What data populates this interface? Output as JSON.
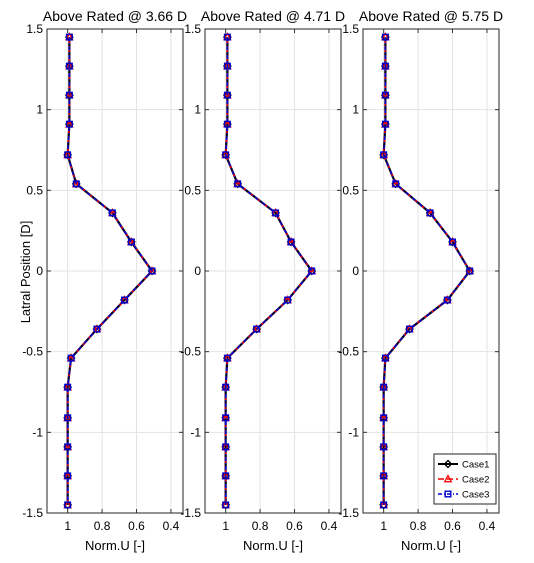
{
  "chart_data": {
    "type": "line",
    "ylabel": "Latral Position [D]",
    "xlabel": "Norm.U [-]",
    "ylim": [
      -1.5,
      1.5
    ],
    "xlim": [
      1.12,
      0.33
    ],
    "x_reversed": true,
    "grid": true,
    "yticks": [
      -1.5,
      -1,
      -0.5,
      0,
      0.5,
      1,
      1.5
    ],
    "ytick_labels": [
      "-1.5",
      "-1",
      "-0.5",
      "0",
      "0.5",
      "1",
      "1.5"
    ],
    "xticks": [
      1,
      0.8,
      0.6,
      0.4
    ],
    "xtick_labels": [
      "1",
      "0.8",
      "0.6",
      "0.4"
    ],
    "legend": {
      "placement": "bottom-right",
      "panel": 2,
      "entries": [
        "Case1",
        "Case2",
        "Case3"
      ]
    },
    "series_styles": [
      {
        "name": "Case1",
        "color": "#000000",
        "dash": "",
        "marker": "diamond"
      },
      {
        "name": "Case2",
        "color": "#ff0000",
        "dash": "6,3",
        "marker": "triangle"
      },
      {
        "name": "Case3",
        "color": "#0000cc",
        "dash": "4,2,1,2",
        "marker": "square"
      }
    ],
    "panels": [
      {
        "title": "Above Rated @ 3.66 D",
        "series": [
          {
            "name": "Case1",
            "y": [
              1.45,
              1.27,
              1.09,
              0.91,
              0.72,
              0.54,
              0.36,
              0.18,
              0,
              -0.18,
              -0.36,
              -0.54,
              -0.72,
              -0.91,
              -1.09,
              -1.27,
              -1.45
            ],
            "x": [
              0.99,
              0.99,
              0.99,
              0.99,
              1.0,
              0.95,
              0.74,
              0.63,
              0.51,
              0.67,
              0.83,
              0.98,
              1.0,
              1.0,
              1.0,
              1.0,
              1.0
            ]
          },
          {
            "name": "Case2",
            "y": [
              1.45,
              1.27,
              1.09,
              0.91,
              0.72,
              0.54,
              0.36,
              0.18,
              0,
              -0.18,
              -0.36,
              -0.54,
              -0.72,
              -0.91,
              -1.09,
              -1.27,
              -1.45
            ],
            "x": [
              0.99,
              0.99,
              0.99,
              0.99,
              1.0,
              0.95,
              0.74,
              0.63,
              0.51,
              0.67,
              0.83,
              0.98,
              1.0,
              1.0,
              1.0,
              1.0,
              1.0
            ]
          },
          {
            "name": "Case3",
            "y": [
              1.45,
              1.27,
              1.09,
              0.91,
              0.72,
              0.54,
              0.36,
              0.18,
              0,
              -0.18,
              -0.36,
              -0.54,
              -0.72,
              -0.91,
              -1.09,
              -1.27,
              -1.45
            ],
            "x": [
              0.99,
              0.99,
              0.99,
              0.99,
              1.0,
              0.95,
              0.74,
              0.63,
              0.51,
              0.67,
              0.83,
              0.98,
              1.0,
              1.0,
              1.0,
              1.0,
              1.0
            ]
          }
        ]
      },
      {
        "title": "Above Rated @ 4.71 D",
        "series": [
          {
            "name": "Case1",
            "y": [
              1.45,
              1.27,
              1.09,
              0.91,
              0.72,
              0.54,
              0.36,
              0.18,
              0,
              -0.18,
              -0.36,
              -0.54,
              -0.72,
              -0.91,
              -1.09,
              -1.27,
              -1.45
            ],
            "x": [
              0.99,
              0.99,
              0.99,
              0.99,
              1.0,
              0.93,
              0.71,
              0.62,
              0.5,
              0.64,
              0.82,
              0.99,
              1.0,
              1.0,
              1.0,
              1.0,
              1.0
            ]
          },
          {
            "name": "Case2",
            "y": [
              1.45,
              1.27,
              1.09,
              0.91,
              0.72,
              0.54,
              0.36,
              0.18,
              0,
              -0.18,
              -0.36,
              -0.54,
              -0.72,
              -0.91,
              -1.09,
              -1.27,
              -1.45
            ],
            "x": [
              0.99,
              0.99,
              0.99,
              0.99,
              1.0,
              0.93,
              0.71,
              0.62,
              0.5,
              0.64,
              0.82,
              0.99,
              1.0,
              1.0,
              1.0,
              1.0,
              1.0
            ]
          },
          {
            "name": "Case3",
            "y": [
              1.45,
              1.27,
              1.09,
              0.91,
              0.72,
              0.54,
              0.36,
              0.18,
              0,
              -0.18,
              -0.36,
              -0.54,
              -0.72,
              -0.91,
              -1.09,
              -1.27,
              -1.45
            ],
            "x": [
              0.99,
              0.99,
              0.99,
              0.99,
              1.0,
              0.93,
              0.71,
              0.62,
              0.5,
              0.64,
              0.82,
              0.99,
              1.0,
              1.0,
              1.0,
              1.0,
              1.0
            ]
          }
        ]
      },
      {
        "title": "Above Rated @ 5.75 D",
        "series": [
          {
            "name": "Case1",
            "y": [
              1.45,
              1.27,
              1.09,
              0.91,
              0.72,
              0.54,
              0.36,
              0.18,
              0,
              -0.18,
              -0.36,
              -0.54,
              -0.72,
              -0.91,
              -1.09,
              -1.27,
              -1.45
            ],
            "x": [
              0.99,
              0.99,
              0.99,
              0.99,
              1.0,
              0.93,
              0.73,
              0.6,
              0.5,
              0.63,
              0.85,
              0.99,
              1.0,
              1.0,
              1.0,
              1.0,
              1.0
            ]
          },
          {
            "name": "Case2",
            "y": [
              1.45,
              1.27,
              1.09,
              0.91,
              0.72,
              0.54,
              0.36,
              0.18,
              0,
              -0.18,
              -0.36,
              -0.54,
              -0.72,
              -0.91,
              -1.09,
              -1.27,
              -1.45
            ],
            "x": [
              0.99,
              0.99,
              0.99,
              0.99,
              1.0,
              0.93,
              0.73,
              0.6,
              0.5,
              0.63,
              0.85,
              0.99,
              1.0,
              1.0,
              1.0,
              1.0,
              1.0
            ]
          },
          {
            "name": "Case3",
            "y": [
              1.45,
              1.27,
              1.09,
              0.91,
              0.72,
              0.54,
              0.36,
              0.18,
              0,
              -0.18,
              -0.36,
              -0.54,
              -0.72,
              -0.91,
              -1.09,
              -1.27,
              -1.45
            ],
            "x": [
              0.99,
              0.99,
              0.99,
              0.99,
              1.0,
              0.93,
              0.73,
              0.6,
              0.5,
              0.63,
              0.85,
              0.99,
              1.0,
              1.0,
              1.0,
              1.0,
              1.0
            ]
          }
        ]
      }
    ]
  }
}
